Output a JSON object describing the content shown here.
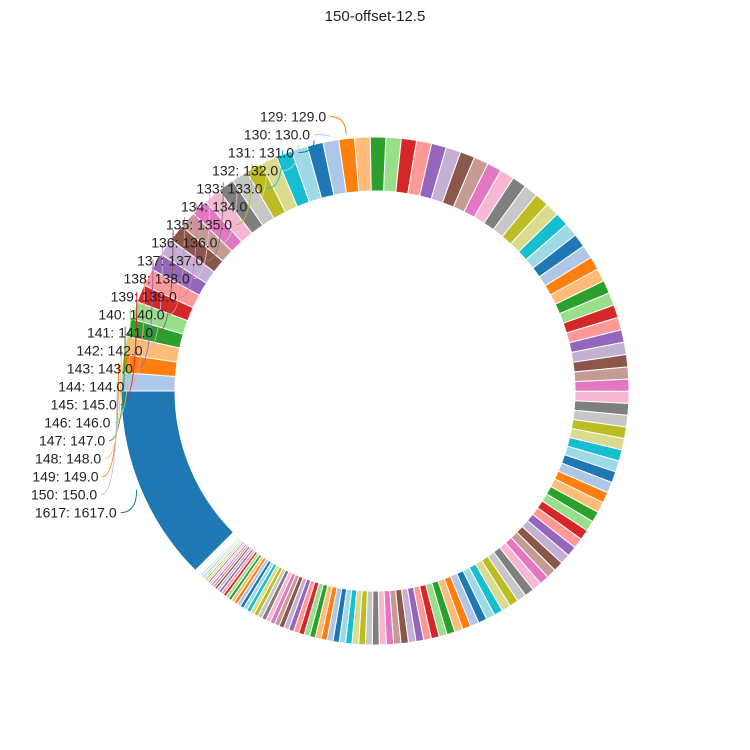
{
  "chart_data": {
    "type": "donut",
    "title": "150-offset-12.5",
    "start_value": 1,
    "end_value": 150,
    "extra_slice": {
      "label": "1617",
      "value": 1617
    },
    "labeled_values": [
      129,
      130,
      131,
      132,
      133,
      134,
      135,
      136,
      137,
      138,
      139,
      140,
      141,
      142,
      143,
      144,
      145,
      146,
      147,
      148,
      149,
      150,
      1617
    ],
    "label_format": "{v}: {v}.0",
    "legend": "none",
    "colors": [
      "#1f77b4",
      "#aec7e8",
      "#ff7f0e",
      "#ffbb78",
      "#2ca02c",
      "#98df8a",
      "#d62728",
      "#ff9896",
      "#9467bd",
      "#c5b0d5",
      "#8c564b",
      "#c49c94",
      "#e377c2",
      "#f7b6d2",
      "#7f7f7f",
      "#c7c7c7",
      "#bcbd22",
      "#dbdb8d",
      "#17becf",
      "#9edae5"
    ]
  }
}
